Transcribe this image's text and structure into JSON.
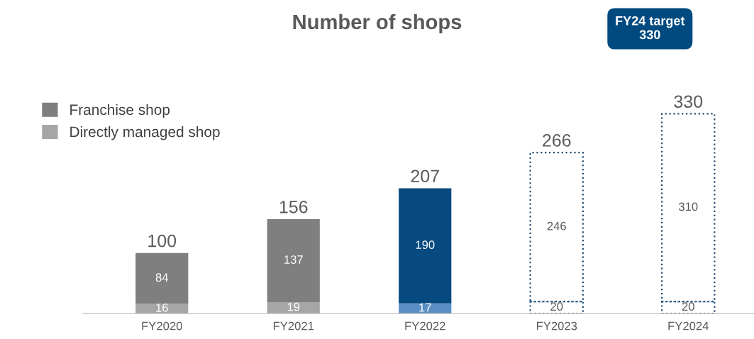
{
  "chart_data": {
    "type": "bar",
    "title": "Number of shops",
    "stacked": true,
    "legend": "top left",
    "data_labels": true,
    "categories": [
      "FY2020",
      "FY2021",
      "FY2022",
      "FY2023",
      "FY2024"
    ],
    "series": [
      {
        "name": "Directly managed shop",
        "color": "#a6a6a6",
        "colors": [
          "#a6a6a6",
          "#a6a6a6",
          "#5b8fc4",
          null,
          null
        ],
        "values": [
          16,
          19,
          17,
          null,
          null
        ]
      },
      {
        "color": "#1f4e79",
        "line_style": "dotted",
        "values": [
          null,
          null,
          null,
          20,
          20
        ]
      },
      {
        "name": "Franchise shop",
        "color": "#7f7f7f",
        "colors": [
          "#7f7f7f",
          "#7f7f7f",
          "#064a80",
          null,
          null
        ],
        "values": [
          84,
          137,
          190,
          null,
          null
        ]
      },
      {
        "color": "#1f4e79",
        "line_style": "dotted",
        "values": [
          null,
          null,
          null,
          246,
          310
        ]
      }
    ],
    "totals": [
      "100",
      "156",
      "207",
      "266",
      "330"
    ],
    "annotations": [
      "FY24 target\n330"
    ]
  }
}
